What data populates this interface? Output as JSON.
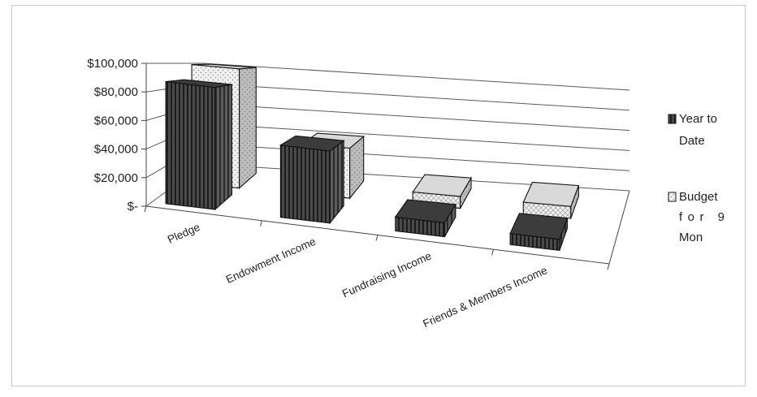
{
  "chart_data": {
    "type": "bar",
    "style": "3d-clustered-column",
    "categories": [
      "Pledge",
      "Endowment Income",
      "Fundraising Income",
      "Friends & Members Income"
    ],
    "series": [
      {
        "name": "Year to Date",
        "values": [
          88000,
          52000,
          10000,
          8000
        ],
        "pattern": "dark-vertical-stripes"
      },
      {
        "name": "Budget for 9 Mon",
        "values": [
          100000,
          42000,
          10000,
          10000
        ],
        "pattern": "light-dotted"
      }
    ],
    "ylim": [
      0,
      100000
    ],
    "yticks": [
      "$-",
      "$20,000",
      "$40,000",
      "$60,000",
      "$80,000",
      "$100,000"
    ],
    "grid": true,
    "legend_position": "right",
    "colors": {
      "series1_face": "#4a4a4a",
      "series1_stripe": "#1c1c1c",
      "series2_face": "#efefef",
      "series2_dot": "#9a9a9a",
      "grid": "#555555"
    }
  },
  "legend": {
    "year_to_date": [
      "Year to",
      "Date"
    ],
    "budget": [
      "Budget",
      "for 9",
      "Mon"
    ]
  }
}
